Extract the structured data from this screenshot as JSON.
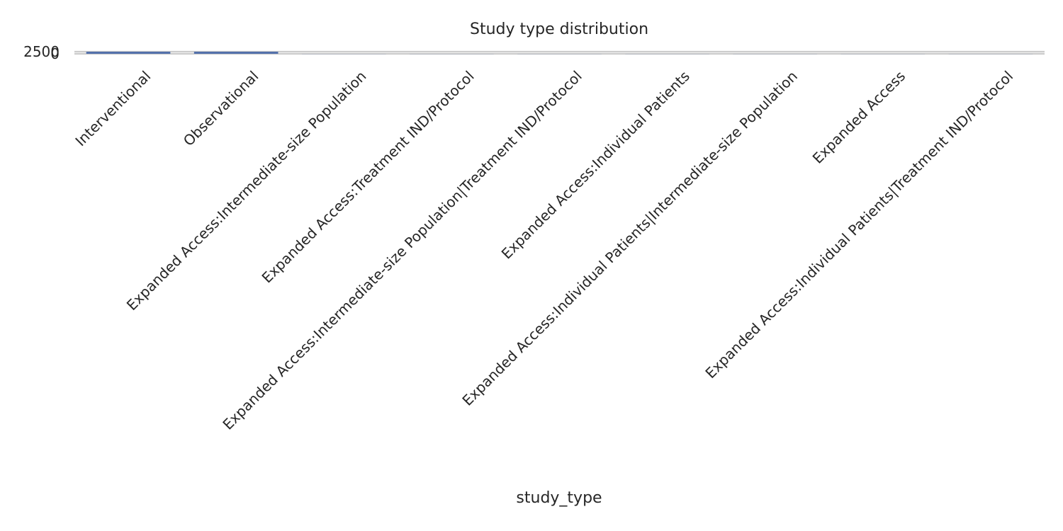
{
  "chart_data": {
    "type": "bar",
    "title": "Study type distribution",
    "xlabel": "study_type",
    "ylabel": "",
    "categories": [
      "Interventional",
      "Observational",
      "Expanded Access:Intermediate-size Population",
      "Expanded Access:Treatment IND/Protocol",
      "Expanded Access:Intermediate-size Population|Treatment IND/Protocol",
      "Expanded Access:Individual Patients",
      "Expanded Access:Individual Patients|Intermediate-size Population",
      "Expanded Access",
      "Expanded Access:Individual Patients|Treatment IND/Protocol"
    ],
    "values": [
      2500,
      2500,
      2,
      1,
      1,
      1,
      1,
      1,
      1
    ],
    "ylim": [
      0,
      2500
    ],
    "yticks": [
      "0",
      "2500"
    ],
    "grid": true,
    "colors": {
      "bar": "#5471ab",
      "grid": "#cccccc",
      "text": "#262626"
    }
  }
}
